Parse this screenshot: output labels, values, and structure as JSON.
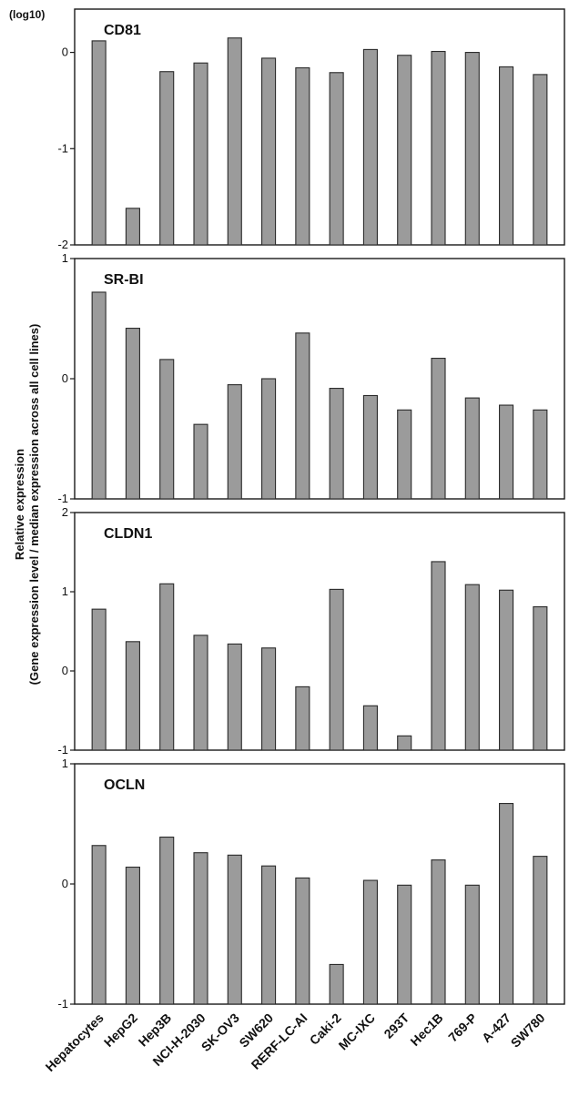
{
  "chart_data": {
    "type": "bar",
    "unit_label": "(log10)",
    "ylabel": [
      "Relative expression",
      "(Gene expression level / median expression across all cell lines)"
    ],
    "categories": [
      "Hepatocytes",
      "HepG2",
      "Hep3B",
      "NCI-H-2030",
      "SK-OV3",
      "SW620",
      "RERF-LC-AI",
      "Caki-2",
      "MC-IXC",
      "293T",
      "Hec1B",
      "769-P",
      "A-427",
      "SW780"
    ],
    "panels": [
      {
        "title": "CD81",
        "ylim": [
          -2,
          0.45
        ],
        "yticks": [
          0,
          -1,
          -2
        ],
        "ytick_labels": [
          "0",
          "-1",
          "-2"
        ],
        "values": [
          0.12,
          -1.62,
          -0.2,
          -0.11,
          0.15,
          -0.06,
          -0.16,
          -0.21,
          0.03,
          -0.03,
          0.01,
          0.0,
          -0.15,
          -0.23
        ]
      },
      {
        "title": "SR-BI",
        "ylim": [
          -1,
          1
        ],
        "yticks": [
          1,
          0,
          -1
        ],
        "ytick_labels": [
          "1",
          "0",
          "-1"
        ],
        "values": [
          0.72,
          0.42,
          0.16,
          -0.38,
          -0.05,
          0.0,
          0.38,
          -0.08,
          -0.14,
          -0.26,
          0.17,
          -0.16,
          -0.22,
          -0.26
        ]
      },
      {
        "title": "CLDN1",
        "ylim": [
          -1,
          2
        ],
        "yticks": [
          2,
          1,
          0,
          -1
        ],
        "ytick_labels": [
          "2",
          "1",
          "0",
          "-1"
        ],
        "values": [
          0.78,
          0.37,
          1.1,
          0.45,
          0.34,
          0.29,
          -0.2,
          1.03,
          -0.44,
          -0.82,
          1.38,
          1.09,
          1.02,
          0.81
        ]
      },
      {
        "title": "OCLN",
        "ylim": [
          -1,
          1
        ],
        "yticks": [
          1,
          0,
          -1
        ],
        "ytick_labels": [
          "1",
          "0",
          "-1"
        ],
        "values": [
          0.32,
          0.14,
          0.39,
          0.26,
          0.24,
          0.15,
          0.05,
          -0.67,
          0.03,
          -0.01,
          0.2,
          -0.01,
          0.67,
          0.23
        ]
      }
    ]
  }
}
